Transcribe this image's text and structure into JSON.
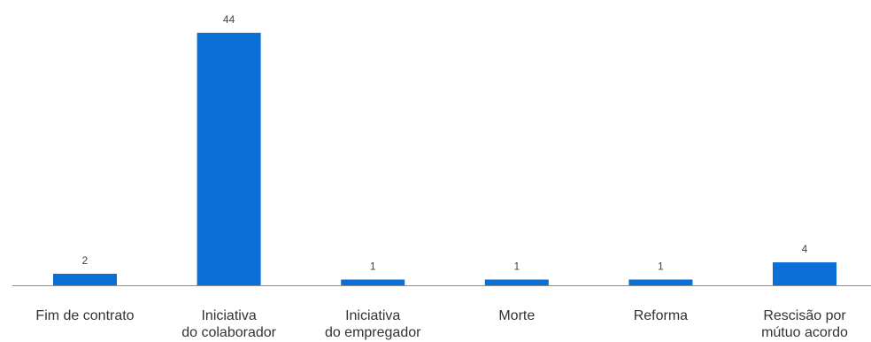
{
  "colors": {
    "bar": "#0a6fd6",
    "axis": "#8c8c8c"
  },
  "chart_data": {
    "type": "bar",
    "categories": [
      [
        "Fim de contrato"
      ],
      [
        "Iniciativa",
        "do colaborador"
      ],
      [
        "Iniciativa",
        "do empregador"
      ],
      [
        "Morte"
      ],
      [
        "Reforma"
      ],
      [
        "Rescisão por",
        "mútuo acordo"
      ]
    ],
    "values": [
      2,
      44,
      1,
      1,
      1,
      4
    ],
    "data_labels": [
      "2",
      "44",
      "1",
      "1",
      "1",
      "4"
    ],
    "title": "",
    "xlabel": "",
    "ylabel": "",
    "ylim": [
      0,
      44
    ],
    "grid": false,
    "legend": "none"
  }
}
